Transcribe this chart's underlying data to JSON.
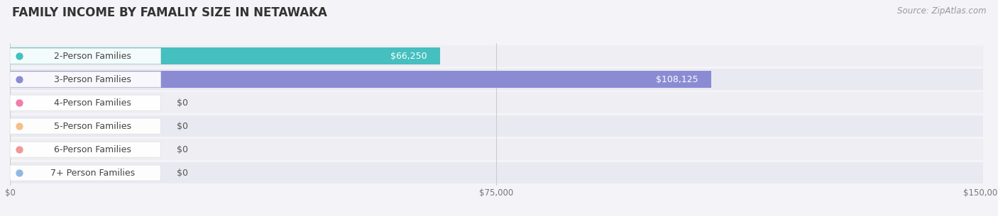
{
  "title": "FAMILY INCOME BY FAMALIY SIZE IN NETAWAKA",
  "source": "Source: ZipAtlas.com",
  "categories": [
    "2-Person Families",
    "3-Person Families",
    "4-Person Families",
    "5-Person Families",
    "6-Person Families",
    "7+ Person Families"
  ],
  "values": [
    66250,
    108125,
    0,
    0,
    0,
    0
  ],
  "bar_colors": [
    "#45BFBF",
    "#8B8BD4",
    "#F07EAA",
    "#F4BF8A",
    "#F09898",
    "#90B8E0"
  ],
  "bar_labels": [
    "$66,250",
    "$108,125",
    "$0",
    "$0",
    "$0",
    "$0"
  ],
  "xlim": [
    0,
    150000
  ],
  "xticks": [
    0,
    75000,
    150000
  ],
  "xticklabels": [
    "$0",
    "$75,000",
    "$150,000"
  ],
  "bg_color": "#F4F4F8",
  "row_bg_even": "#EEEEF4",
  "row_bg_odd": "#E8E8F0",
  "title_fontsize": 12,
  "source_fontsize": 8.5,
  "bar_label_fontsize": 9,
  "category_fontsize": 9
}
